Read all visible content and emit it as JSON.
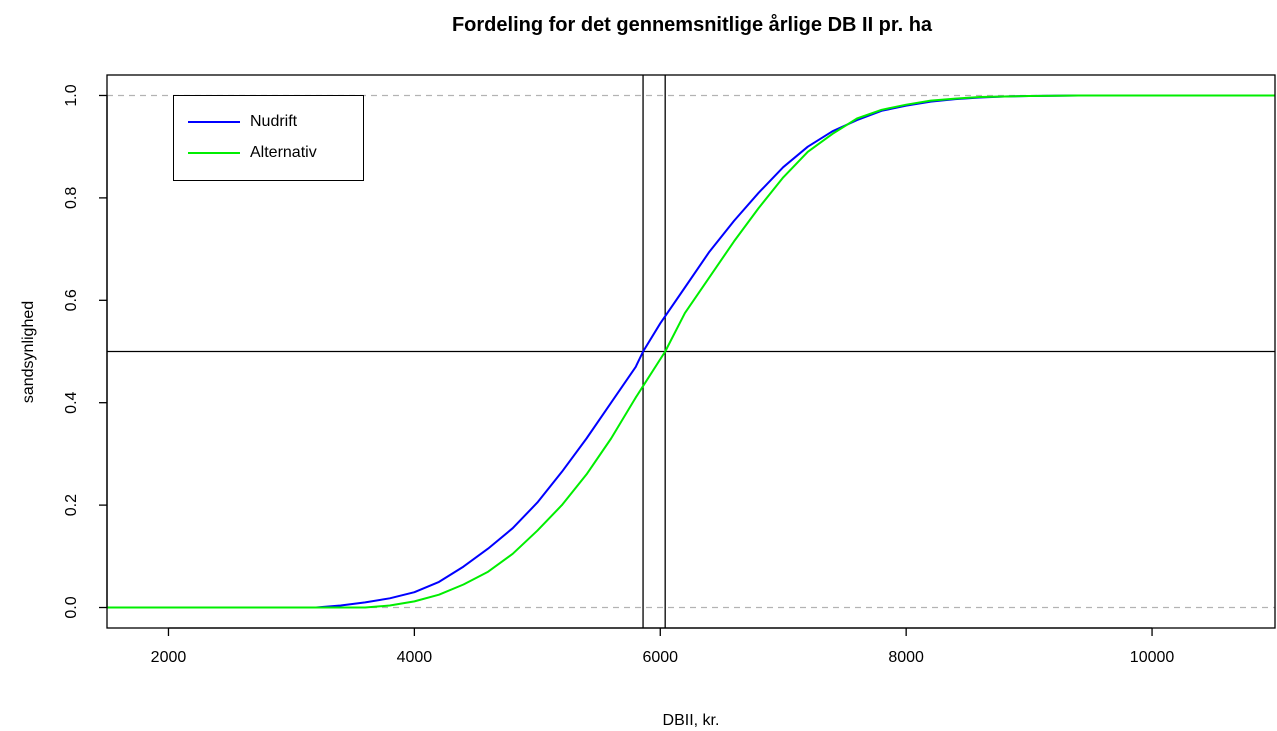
{
  "chart_data": {
    "type": "line",
    "title": "Fordeling for det gennemsnitlige årlige DB II pr. ha",
    "xlabel": "DBII, kr.",
    "ylabel": "sandsynlighed",
    "xlim": [
      1500,
      11000
    ],
    "ylim": [
      -0.04,
      1.04
    ],
    "x_ticks": [
      "2000",
      "4000",
      "6000",
      "8000",
      "10000"
    ],
    "x_tick_values": [
      2000,
      4000,
      6000,
      8000,
      10000
    ],
    "y_ticks": [
      "0.0",
      "0.2",
      "0.4",
      "0.6",
      "0.8",
      "1.0"
    ],
    "y_tick_values": [
      0.0,
      0.2,
      0.4,
      0.6,
      0.8,
      1.0
    ],
    "legend_position": "top-left",
    "series": [
      {
        "name": "Nudrift",
        "color": "#0000ff",
        "x": [
          3200,
          3400,
          3600,
          3800,
          4000,
          4200,
          4400,
          4600,
          4800,
          5000,
          5200,
          5400,
          5600,
          5800,
          5860,
          6000,
          6200,
          6400,
          6600,
          6800,
          7000,
          7200,
          7400,
          7600,
          7800,
          8000,
          8200,
          8400,
          8600,
          8800,
          9000,
          9400,
          9800
        ],
        "y": [
          0.0,
          0.004,
          0.01,
          0.018,
          0.03,
          0.05,
          0.08,
          0.115,
          0.155,
          0.205,
          0.265,
          0.33,
          0.4,
          0.47,
          0.5,
          0.555,
          0.625,
          0.695,
          0.755,
          0.81,
          0.86,
          0.9,
          0.93,
          0.952,
          0.97,
          0.98,
          0.988,
          0.993,
          0.996,
          0.998,
          0.999,
          1.0,
          1.0
        ]
      },
      {
        "name": "Alternativ",
        "color": "#00ee00",
        "x": [
          1500,
          3600,
          3800,
          4000,
          4200,
          4400,
          4600,
          4800,
          5000,
          5200,
          5400,
          5600,
          5800,
          6040,
          6200,
          6400,
          6600,
          6800,
          7000,
          7200,
          7400,
          7600,
          7800,
          8000,
          8200,
          8400,
          8600,
          8800,
          9000,
          9400,
          11000
        ],
        "y": [
          0.0,
          0.0,
          0.004,
          0.012,
          0.025,
          0.045,
          0.07,
          0.105,
          0.15,
          0.2,
          0.26,
          0.33,
          0.41,
          0.5,
          0.575,
          0.645,
          0.715,
          0.78,
          0.84,
          0.89,
          0.925,
          0.955,
          0.972,
          0.982,
          0.99,
          0.994,
          0.997,
          0.998,
          0.999,
          1.0,
          1.0
        ]
      }
    ],
    "reference_lines": {
      "horizontal_dashed": [
        0.0,
        1.0
      ],
      "horizontal_solid": [
        0.5
      ],
      "vertical_solid": [
        5860,
        6040
      ]
    }
  }
}
